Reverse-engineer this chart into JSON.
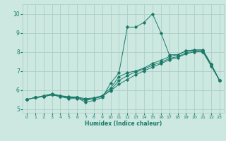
{
  "title": "",
  "xlabel": "Humidex (Indice chaleur)",
  "xlim": [
    -0.5,
    23.5
  ],
  "ylim": [
    4.8,
    10.5
  ],
  "yticks": [
    5,
    6,
    7,
    8,
    9,
    10
  ],
  "xticks": [
    0,
    1,
    2,
    3,
    4,
    5,
    6,
    7,
    8,
    9,
    10,
    11,
    12,
    13,
    14,
    15,
    16,
    17,
    18,
    19,
    20,
    21,
    22,
    23
  ],
  "bg_color": "#cce8e0",
  "grid_color": "#aacfc8",
  "line_color": "#1a7a6a",
  "lines": [
    {
      "x": [
        0,
        1,
        2,
        3,
        4,
        5,
        6,
        7,
        8,
        9,
        10,
        11,
        12,
        13,
        14,
        15,
        16,
        17,
        18,
        19,
        20,
        21,
        22,
        23
      ],
      "y": [
        5.5,
        5.6,
        5.7,
        5.8,
        5.7,
        5.6,
        5.6,
        5.35,
        5.45,
        5.6,
        6.35,
        6.9,
        9.3,
        9.3,
        9.55,
        10.0,
        9.0,
        7.85,
        7.85,
        8.05,
        8.1,
        8.1,
        7.35,
        6.5
      ]
    },
    {
      "x": [
        0,
        1,
        2,
        3,
        4,
        5,
        6,
        7,
        8,
        9,
        10,
        11,
        12,
        13,
        14,
        15,
        16,
        17,
        18,
        19,
        20,
        21,
        22,
        23
      ],
      "y": [
        5.5,
        5.6,
        5.65,
        5.75,
        5.65,
        5.55,
        5.55,
        5.45,
        5.55,
        5.7,
        6.1,
        6.7,
        6.9,
        7.0,
        7.15,
        7.4,
        7.55,
        7.75,
        7.85,
        8.05,
        8.1,
        8.1,
        7.35,
        6.5
      ]
    },
    {
      "x": [
        0,
        1,
        2,
        3,
        4,
        5,
        6,
        7,
        8,
        9,
        10,
        11,
        12,
        13,
        14,
        15,
        16,
        17,
        18,
        19,
        20,
        21,
        22,
        23
      ],
      "y": [
        5.5,
        5.6,
        5.65,
        5.75,
        5.65,
        5.6,
        5.6,
        5.5,
        5.55,
        5.65,
        6.0,
        6.5,
        6.75,
        6.95,
        7.1,
        7.3,
        7.45,
        7.65,
        7.75,
        7.95,
        8.05,
        8.05,
        7.3,
        6.5
      ]
    },
    {
      "x": [
        0,
        1,
        2,
        3,
        4,
        5,
        6,
        7,
        8,
        9,
        10,
        11,
        12,
        13,
        14,
        15,
        16,
        17,
        18,
        19,
        20,
        21,
        22,
        23
      ],
      "y": [
        5.5,
        5.6,
        5.65,
        5.75,
        5.7,
        5.65,
        5.62,
        5.55,
        5.58,
        5.7,
        5.95,
        6.3,
        6.55,
        6.8,
        7.0,
        7.2,
        7.38,
        7.58,
        7.7,
        7.9,
        8.0,
        8.0,
        7.25,
        6.5
      ]
    }
  ]
}
